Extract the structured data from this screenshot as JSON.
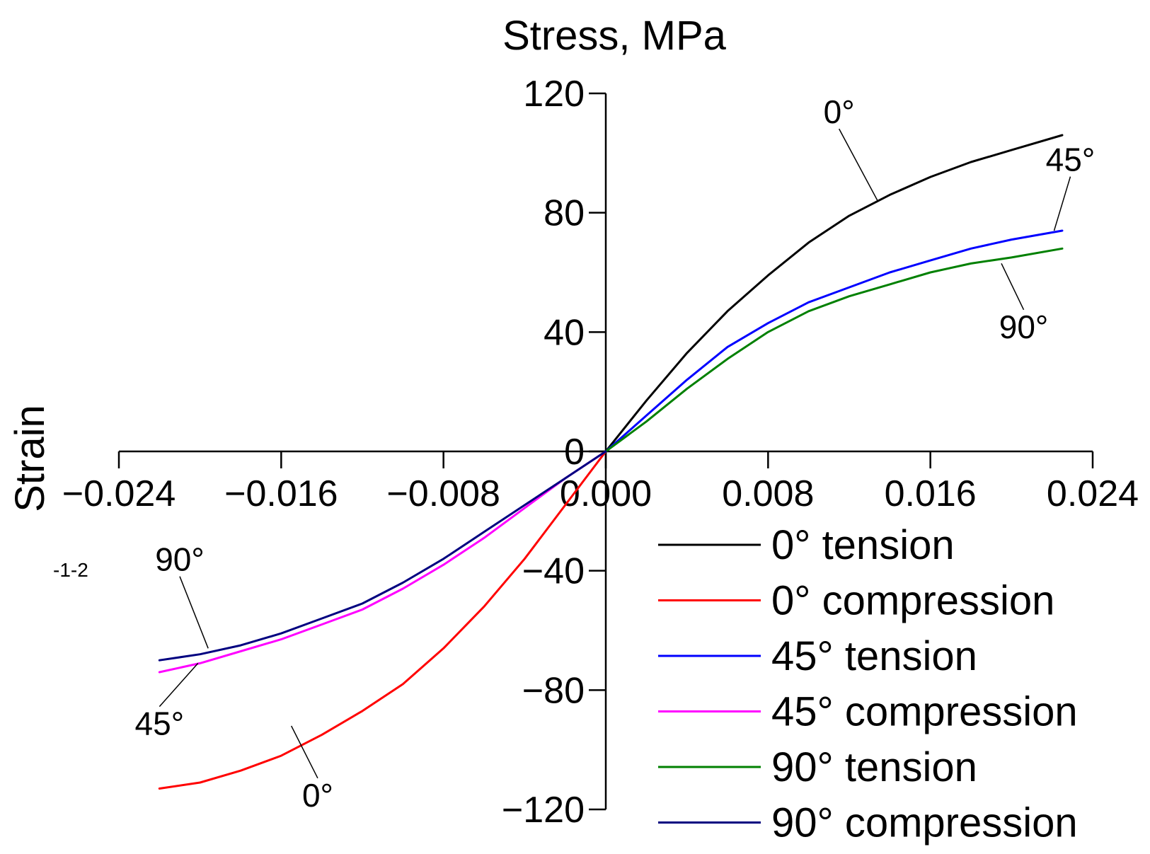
{
  "chart_data": {
    "type": "line",
    "title": "",
    "xlabel": "Strain",
    "ylabel": "Stress, MPa",
    "xlim": [
      -0.024,
      0.024
    ],
    "ylim": [
      -120,
      120
    ],
    "xticks": [
      -0.024,
      -0.016,
      -0.008,
      0.0,
      0.008,
      0.016,
      0.024
    ],
    "xtick_labels": [
      "−0.024",
      "−0.016",
      "−0.008",
      "0.000",
      "0.008",
      "0.016",
      "0.024"
    ],
    "yticks": [
      120,
      80,
      40,
      0,
      -40,
      -80,
      -120
    ],
    "ytick_labels": [
      "120",
      "80",
      "40",
      "0",
      "−40",
      "−80",
      "−120"
    ],
    "grid": false,
    "legend_position": "bottom-right",
    "stray_label": "-1-2",
    "series": [
      {
        "name": "0° tension",
        "color": "#000000",
        "x": [
          0,
          0.002,
          0.004,
          0.006,
          0.008,
          0.01,
          0.012,
          0.014,
          0.016,
          0.018,
          0.02,
          0.0225
        ],
        "y": [
          0,
          17,
          33,
          47,
          59,
          70,
          79,
          86,
          92,
          97,
          101,
          106
        ]
      },
      {
        "name": "0° compression",
        "color": "#ff0000",
        "x": [
          0,
          -0.002,
          -0.004,
          -0.006,
          -0.008,
          -0.01,
          -0.012,
          -0.014,
          -0.016,
          -0.018,
          -0.02,
          -0.022
        ],
        "y": [
          0,
          -18,
          -36,
          -52,
          -66,
          -78,
          -87,
          -95,
          -102,
          -107,
          -111,
          -113
        ]
      },
      {
        "name": "45° tension",
        "color": "#0000ff",
        "x": [
          0,
          0.002,
          0.004,
          0.006,
          0.008,
          0.01,
          0.012,
          0.014,
          0.016,
          0.018,
          0.02,
          0.0225
        ],
        "y": [
          0,
          12,
          24,
          35,
          43,
          50,
          55,
          60,
          64,
          68,
          71,
          74
        ]
      },
      {
        "name": "45° compression",
        "color": "#ff00ff",
        "x": [
          0,
          -0.002,
          -0.004,
          -0.006,
          -0.008,
          -0.01,
          -0.012,
          -0.014,
          -0.016,
          -0.018,
          -0.02,
          -0.022
        ],
        "y": [
          0,
          -9,
          -19,
          -29,
          -38,
          -46,
          -53,
          -58,
          -63,
          -67,
          -71,
          -74
        ]
      },
      {
        "name": "90° tension",
        "color": "#008000",
        "x": [
          0,
          0.002,
          0.004,
          0.006,
          0.008,
          0.01,
          0.012,
          0.014,
          0.016,
          0.018,
          0.02,
          0.0225
        ],
        "y": [
          0,
          10,
          21,
          31,
          40,
          47,
          52,
          56,
          60,
          63,
          65,
          68
        ]
      },
      {
        "name": "90° compression",
        "color": "#000080",
        "x": [
          0,
          -0.002,
          -0.004,
          -0.006,
          -0.008,
          -0.01,
          -0.012,
          -0.014,
          -0.016,
          -0.018,
          -0.02,
          -0.022
        ],
        "y": [
          0,
          -9,
          -18,
          -27,
          -36,
          -44,
          -51,
          -56,
          -61,
          -65,
          -68,
          -70
        ]
      }
    ],
    "annotations": [
      {
        "text": "0°",
        "x": 0.0115,
        "y": 110,
        "point_x": 0.0134,
        "point_y": 84
      },
      {
        "text": "45°",
        "x": 0.0229,
        "y": 94,
        "point_x": 0.0221,
        "point_y": 74
      },
      {
        "text": "90°",
        "x": 0.0206,
        "y": 38,
        "point_x": 0.0195,
        "point_y": 63
      },
      {
        "text": "90°",
        "x": -0.021,
        "y": -40,
        "point_x": -0.0196,
        "point_y": -66
      },
      {
        "text": "45°",
        "x": -0.022,
        "y": -95,
        "point_x": -0.0201,
        "point_y": -71
      },
      {
        "text": "0°",
        "x": -0.0142,
        "y": -119,
        "point_x": -0.0155,
        "point_y": -92
      }
    ]
  }
}
